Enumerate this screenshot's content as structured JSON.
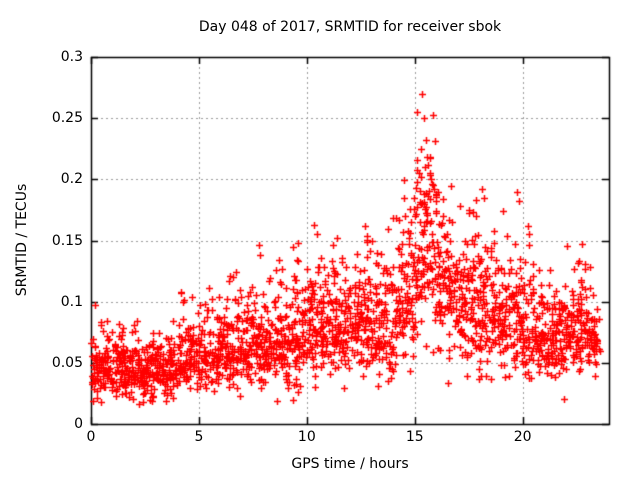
{
  "window": {
    "background_color": "#ffffff",
    "text_color": "#000000"
  },
  "chart_data": {
    "type": "scatter",
    "title": "Day 048 of 2017, SRMTID for receiver sbok",
    "xlabel": "GPS time / hours",
    "ylabel": "SRMTID / TECUs",
    "xlim": [
      0,
      24
    ],
    "ylim": [
      0,
      0.3
    ],
    "xticks": [
      0,
      5,
      10,
      15,
      20
    ],
    "xtick_labels": [
      "0",
      "5",
      "10",
      "15",
      "20"
    ],
    "yticks": [
      0,
      0.05,
      0.1,
      0.15,
      0.2,
      0.25,
      0.3
    ],
    "ytick_labels": [
      "0",
      "0.05",
      "0.1",
      "0.15",
      "0.2",
      "0.25",
      "0.3"
    ],
    "grid": true,
    "grid_color": "#9b9b9b",
    "grid_dash": [
      2,
      3
    ],
    "border_color": "#000000",
    "marker": {
      "shape": "plus",
      "color": "#ff0000",
      "size": 7,
      "stroke": 1.5
    },
    "legend": "none",
    "seed": 20170048,
    "min_value": 0.016,
    "data_end_hour": 23.62,
    "envelope_bins": {
      "bin_hours": 0.5,
      "columns": [
        "start_hour",
        "mean",
        "sd_down",
        "sd_up",
        "count"
      ],
      "rows": [
        [
          0.0,
          0.044,
          0.011,
          0.018,
          50
        ],
        [
          0.5,
          0.046,
          0.011,
          0.018,
          50
        ],
        [
          1.0,
          0.047,
          0.012,
          0.018,
          50
        ],
        [
          1.5,
          0.044,
          0.011,
          0.016,
          48
        ],
        [
          2.0,
          0.042,
          0.01,
          0.015,
          48
        ],
        [
          2.5,
          0.042,
          0.01,
          0.015,
          48
        ],
        [
          3.0,
          0.043,
          0.01,
          0.016,
          48
        ],
        [
          3.5,
          0.045,
          0.011,
          0.017,
          48
        ],
        [
          4.0,
          0.05,
          0.012,
          0.022,
          48
        ],
        [
          4.5,
          0.054,
          0.012,
          0.02,
          48
        ],
        [
          5.0,
          0.057,
          0.013,
          0.02,
          48
        ],
        [
          5.5,
          0.058,
          0.013,
          0.022,
          48
        ],
        [
          6.0,
          0.06,
          0.014,
          0.024,
          48
        ],
        [
          6.5,
          0.062,
          0.014,
          0.024,
          48
        ],
        [
          7.0,
          0.062,
          0.014,
          0.026,
          48
        ],
        [
          7.5,
          0.066,
          0.015,
          0.028,
          50
        ],
        [
          8.0,
          0.064,
          0.014,
          0.024,
          50
        ],
        [
          8.5,
          0.066,
          0.015,
          0.025,
          50
        ],
        [
          9.0,
          0.068,
          0.015,
          0.026,
          50
        ],
        [
          9.5,
          0.072,
          0.016,
          0.028,
          50
        ],
        [
          10.0,
          0.076,
          0.017,
          0.03,
          50
        ],
        [
          10.5,
          0.08,
          0.018,
          0.03,
          50
        ],
        [
          11.0,
          0.082,
          0.018,
          0.028,
          50
        ],
        [
          11.5,
          0.083,
          0.018,
          0.028,
          50
        ],
        [
          12.0,
          0.085,
          0.018,
          0.03,
          50
        ],
        [
          12.5,
          0.088,
          0.019,
          0.03,
          50
        ],
        [
          13.0,
          0.082,
          0.022,
          0.03,
          48
        ],
        [
          13.5,
          0.076,
          0.022,
          0.032,
          46
        ],
        [
          14.0,
          0.092,
          0.024,
          0.036,
          48
        ],
        [
          14.5,
          0.105,
          0.025,
          0.038,
          50
        ],
        [
          15.0,
          0.135,
          0.03,
          0.045,
          55
        ],
        [
          15.5,
          0.145,
          0.03,
          0.042,
          55
        ],
        [
          16.0,
          0.115,
          0.028,
          0.038,
          50
        ],
        [
          16.5,
          0.105,
          0.026,
          0.036,
          48
        ],
        [
          17.0,
          0.095,
          0.024,
          0.032,
          48
        ],
        [
          17.5,
          0.092,
          0.022,
          0.034,
          48
        ],
        [
          18.0,
          0.092,
          0.022,
          0.034,
          48
        ],
        [
          18.5,
          0.088,
          0.021,
          0.032,
          48
        ],
        [
          19.0,
          0.086,
          0.02,
          0.032,
          48
        ],
        [
          19.5,
          0.086,
          0.02,
          0.033,
          48
        ],
        [
          20.0,
          0.078,
          0.017,
          0.026,
          48
        ],
        [
          20.5,
          0.074,
          0.016,
          0.024,
          48
        ],
        [
          21.0,
          0.07,
          0.015,
          0.022,
          48
        ],
        [
          21.5,
          0.07,
          0.015,
          0.022,
          48
        ],
        [
          22.0,
          0.073,
          0.016,
          0.024,
          48
        ],
        [
          22.5,
          0.078,
          0.016,
          0.024,
          50
        ],
        [
          23.0,
          0.072,
          0.015,
          0.022,
          44
        ],
        [
          23.5,
          0.068,
          0.014,
          0.02,
          12
        ]
      ]
    },
    "outlier_points": [
      [
        0.2,
        0.097
      ],
      [
        4.15,
        0.107
      ],
      [
        4.25,
        0.1
      ],
      [
        6.6,
        0.12
      ],
      [
        7.8,
        0.146
      ],
      [
        7.85,
        0.138
      ],
      [
        9.6,
        0.148
      ],
      [
        10.35,
        0.163
      ],
      [
        10.45,
        0.155
      ],
      [
        11.4,
        0.152
      ],
      [
        12.7,
        0.162
      ],
      [
        12.8,
        0.154
      ],
      [
        13.0,
        0.15
      ],
      [
        14.15,
        0.168
      ],
      [
        14.8,
        0.176
      ],
      [
        14.95,
        0.185
      ],
      [
        15.1,
        0.198
      ],
      [
        15.2,
        0.205
      ],
      [
        15.3,
        0.225
      ],
      [
        15.35,
        0.27
      ],
      [
        15.42,
        0.25
      ],
      [
        15.5,
        0.232
      ],
      [
        15.55,
        0.218
      ],
      [
        15.62,
        0.212
      ],
      [
        15.7,
        0.205
      ],
      [
        15.8,
        0.196
      ],
      [
        15.9,
        0.192
      ],
      [
        16.1,
        0.19
      ],
      [
        16.3,
        0.184
      ],
      [
        17.1,
        0.178
      ],
      [
        17.5,
        0.175
      ],
      [
        18.1,
        0.192
      ],
      [
        18.2,
        0.185
      ],
      [
        19.75,
        0.19
      ],
      [
        19.85,
        0.182
      ],
      [
        20.3,
        0.155
      ],
      [
        22.6,
        0.133
      ],
      [
        23.1,
        0.128
      ]
    ]
  }
}
